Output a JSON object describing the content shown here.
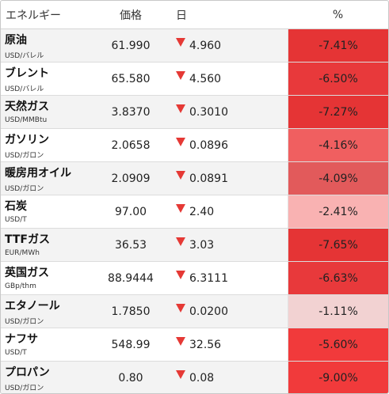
{
  "header": {
    "name": "エネルギー",
    "price": "価格",
    "day": "日",
    "pct": "%"
  },
  "rows": [
    {
      "name": "原油",
      "unit": "USD/バレル",
      "price": "61.990",
      "day": "4.960",
      "pct": "-7.41%",
      "pct_color": "#e53435"
    },
    {
      "name": "ブレント",
      "unit": "USD/バレル",
      "price": "65.580",
      "day": "4.560",
      "pct": "-6.50%",
      "pct_color": "#e8393b"
    },
    {
      "name": "天然ガス",
      "unit": "USD/MMBtu",
      "price": "3.8370",
      "day": "0.3010",
      "pct": "-7.27%",
      "pct_color": "#e53435"
    },
    {
      "name": "ガソリン",
      "unit": "USD/ガロン",
      "price": "2.0658",
      "day": "0.0896",
      "pct": "-4.16%",
      "pct_color": "#f05f60"
    },
    {
      "name": "暖房用オイル",
      "unit": "USD/ガロン",
      "price": "2.0909",
      "day": "0.0891",
      "pct": "-4.09%",
      "pct_color": "#e25a5b"
    },
    {
      "name": "石炭",
      "unit": "USD/T",
      "price": "97.00",
      "day": "2.40",
      "pct": "-2.41%",
      "pct_color": "#f9b2b2"
    },
    {
      "name": "TTFガス",
      "unit": "EUR/MWh",
      "price": "36.53",
      "day": "3.03",
      "pct": "-7.65%",
      "pct_color": "#e53435"
    },
    {
      "name": "英国ガス",
      "unit": "GBp/thm",
      "price": "88.9444",
      "day": "6.3111",
      "pct": "-6.63%",
      "pct_color": "#e8393b"
    },
    {
      "name": "エタノール",
      "unit": "USD/ガロン",
      "price": "1.7850",
      "day": "0.0200",
      "pct": "-1.11%",
      "pct_color": "#f2d2d2"
    },
    {
      "name": "ナフサ",
      "unit": "USD/T",
      "price": "548.99",
      "day": "32.56",
      "pct": "-5.60%",
      "pct_color": "#f13a3b"
    },
    {
      "name": "プロパン",
      "unit": "USD/ガロン",
      "price": "0.80",
      "day": "0.08",
      "pct": "-9.00%",
      "pct_color": "#f13a3b"
    }
  ],
  "icons": {
    "down": "down-triangle-icon"
  },
  "colors": {
    "down_triangle": "#e53935"
  }
}
